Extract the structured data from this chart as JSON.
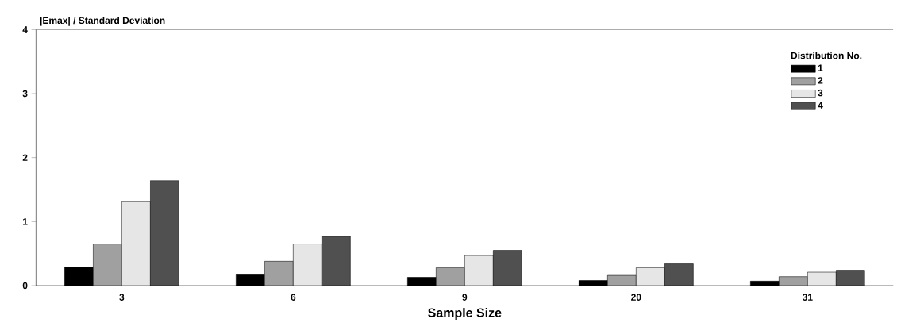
{
  "chart_data": {
    "type": "bar",
    "categories": [
      "3",
      "6",
      "9",
      "20",
      "31"
    ],
    "xlabel": "Sample Size",
    "ylabel": "|Emax| / Standard Deviation",
    "legend_title": "Distribution No.",
    "series": [
      {
        "name": "1",
        "color": "#000000",
        "values": [
          0.29,
          0.17,
          0.13,
          0.08,
          0.07
        ]
      },
      {
        "name": "2",
        "color": "#a0a0a0",
        "values": [
          0.65,
          0.38,
          0.28,
          0.16,
          0.14
        ]
      },
      {
        "name": "3",
        "color": "#e6e6e6",
        "values": [
          1.31,
          0.65,
          0.47,
          0.28,
          0.21
        ]
      },
      {
        "name": "4",
        "color": "#505050",
        "values": [
          1.64,
          0.77,
          0.55,
          0.34,
          0.24
        ]
      }
    ],
    "ylim": [
      0,
      4
    ],
    "yticks": [
      0,
      1,
      2,
      3,
      4
    ],
    "grid": false,
    "legend": "top right"
  }
}
